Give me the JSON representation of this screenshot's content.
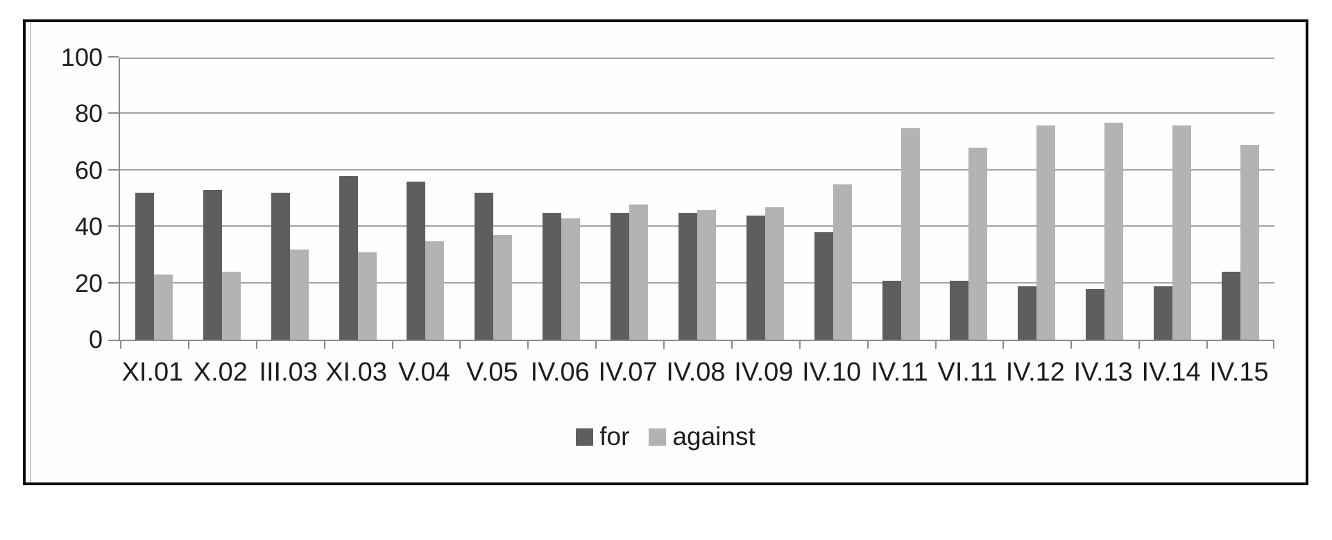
{
  "chart_data": {
    "type": "bar",
    "title": "",
    "xlabel": "",
    "ylabel": "",
    "categories": [
      "XI.01",
      "X.02",
      "III.03",
      "XI.03",
      "V.04",
      "V.05",
      "IV.06",
      "IV.07",
      "IV.08",
      "IV.09",
      "IV.10",
      "IV.11",
      "VI.11",
      "IV.12",
      "IV.13",
      "IV.14",
      "IV.15"
    ],
    "series": [
      {
        "name": "for",
        "color": "#5e5e5e",
        "values": [
          52,
          53,
          52,
          58,
          56,
          52,
          45,
          45,
          45,
          44,
          38,
          21,
          21,
          19,
          18,
          19,
          24
        ]
      },
      {
        "name": "against",
        "color": "#b3b3b3",
        "values": [
          23,
          24,
          32,
          31,
          35,
          37,
          43,
          48,
          46,
          47,
          55,
          75,
          68,
          76,
          77,
          76,
          69
        ]
      }
    ],
    "ylim": [
      0,
      100
    ],
    "yticks": [
      0,
      20,
      40,
      60,
      80,
      100
    ],
    "grid": true,
    "legend_position": "bottom"
  },
  "colors": {
    "bar_for": "#5e5e5e",
    "bar_against": "#b3b3b3",
    "gridline": "#a3a3a3",
    "axis": "#8a8a8a",
    "text": "#1c1c1c",
    "frame_border": "#0a0a0a",
    "background": "#ffffff"
  }
}
